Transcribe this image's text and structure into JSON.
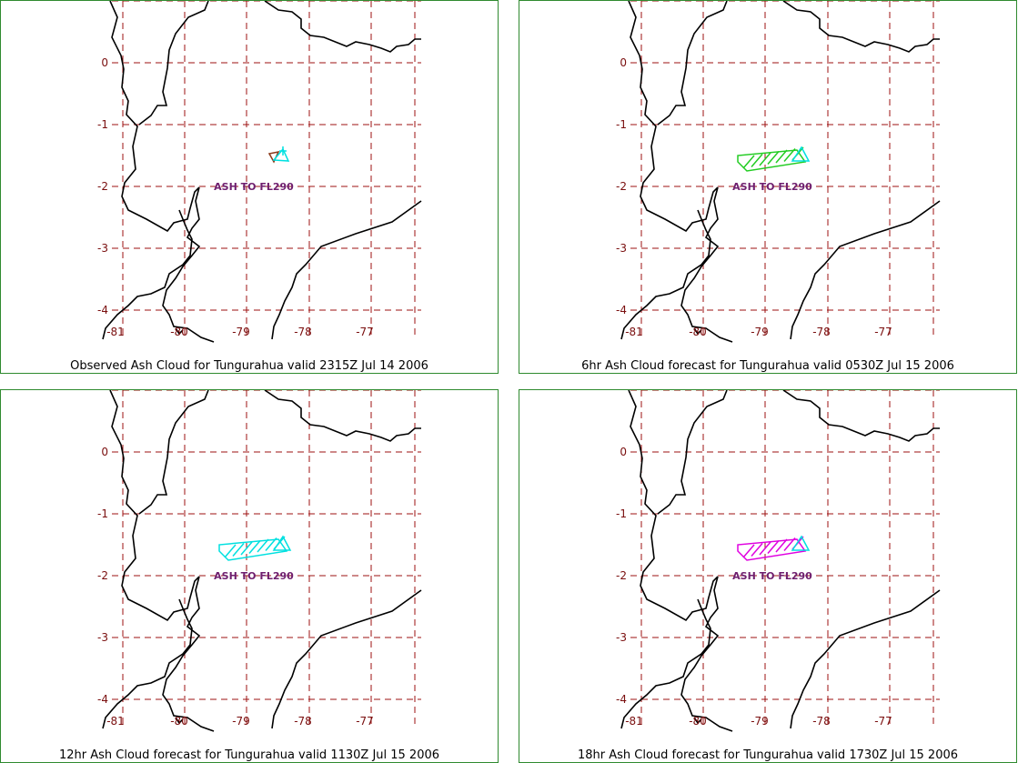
{
  "panels": [
    {
      "title": "Observed Ash Cloud for Tungurahua valid 2315Z Jul 14 2006",
      "ash_label": "ASH TO FL290",
      "cloud_color": "#8b3a1a",
      "hatch_color": "#00e0e0",
      "cloud": "observed"
    },
    {
      "title": "6hr Ash Cloud forecast for Tungurahua valid 0530Z Jul 15 2006",
      "ash_label": "ASH TO FL290",
      "cloud_color": "#22cc22",
      "hatch_color": "#00e0e0",
      "cloud": "forecast"
    },
    {
      "title": "12hr Ash Cloud forecast for Tungurahua valid 1130Z Jul 15 2006",
      "ash_label": "ASH TO FL290",
      "cloud_color": "#00e0e0",
      "hatch_color": "#00e0e0",
      "cloud": "forecast"
    },
    {
      "title": "18hr Ash Cloud forecast for Tungurahua valid 1730Z Jul 15 2006",
      "ash_label": "ASH TO FL290",
      "cloud_color": "#e000e0",
      "hatch_color": "#00e0e0",
      "cloud": "forecast"
    }
  ],
  "map": {
    "lat_ticks": [
      "0",
      "-1",
      "-2",
      "-3",
      "-4"
    ],
    "lon_ticks": [
      "-81",
      "-80",
      "-79",
      "-78",
      "-77"
    ],
    "grid_color": "#9c1010",
    "coast_color": "#000000"
  }
}
